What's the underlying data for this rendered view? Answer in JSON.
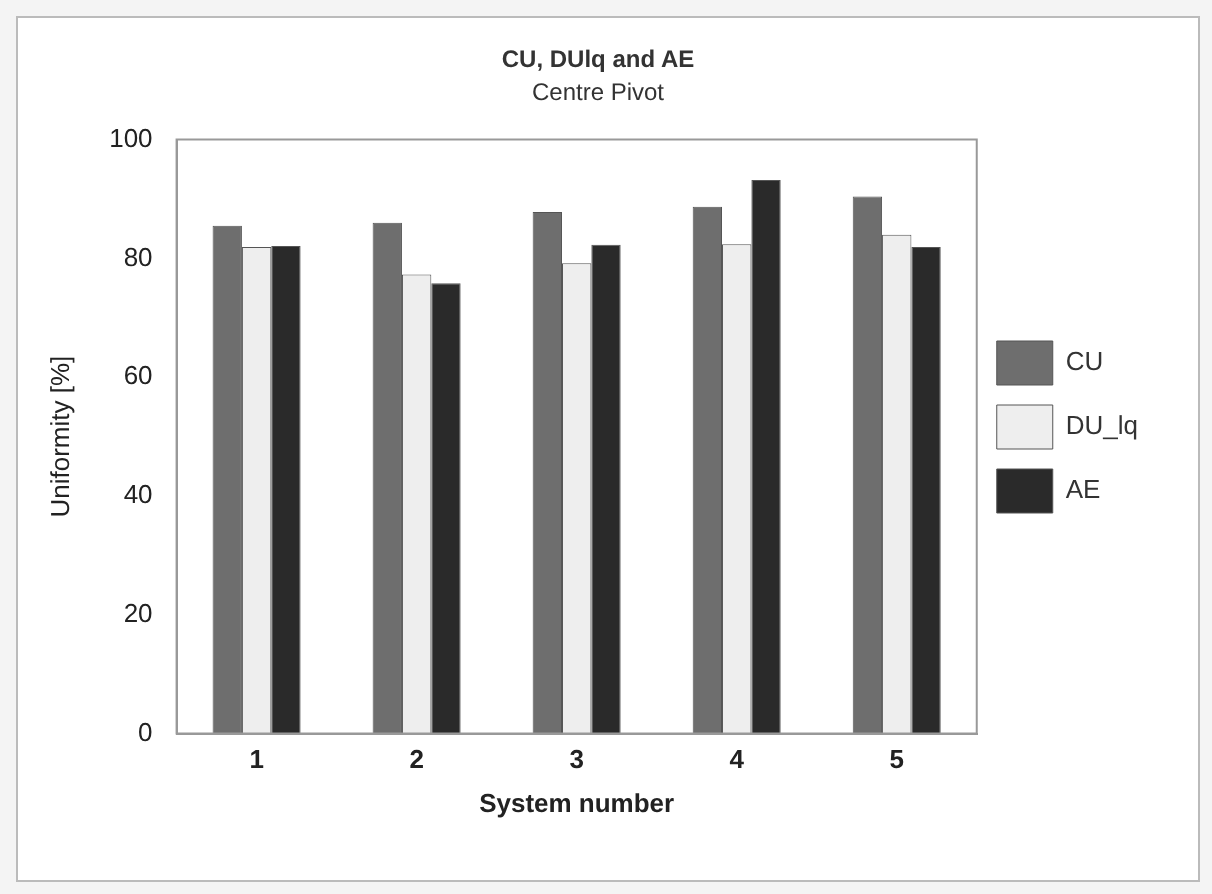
{
  "chart_data": {
    "type": "bar",
    "title": "CU, DUlq and AE",
    "subtitle": "Centre Pivot",
    "xlabel": "System number",
    "ylabel": "Uniformity [%]",
    "categories": [
      "1",
      "2",
      "3",
      "4",
      "5"
    ],
    "series": [
      {
        "name": "CU",
        "color": "#6e6e6e",
        "values": [
          85.5,
          86.0,
          87.8,
          88.7,
          90.4
        ]
      },
      {
        "name": "DU_lq",
        "color": "#eeeeee",
        "values": [
          81.9,
          77.3,
          79.2,
          82.4,
          84.0
        ]
      },
      {
        "name": "AE",
        "color": "#2a2a2a",
        "values": [
          82.1,
          75.8,
          82.3,
          93.2,
          81.9
        ]
      }
    ],
    "ylim": [
      0,
      100
    ],
    "yticks": [
      0,
      20,
      40,
      60,
      80,
      100
    ],
    "grid": false,
    "legend": "right"
  }
}
